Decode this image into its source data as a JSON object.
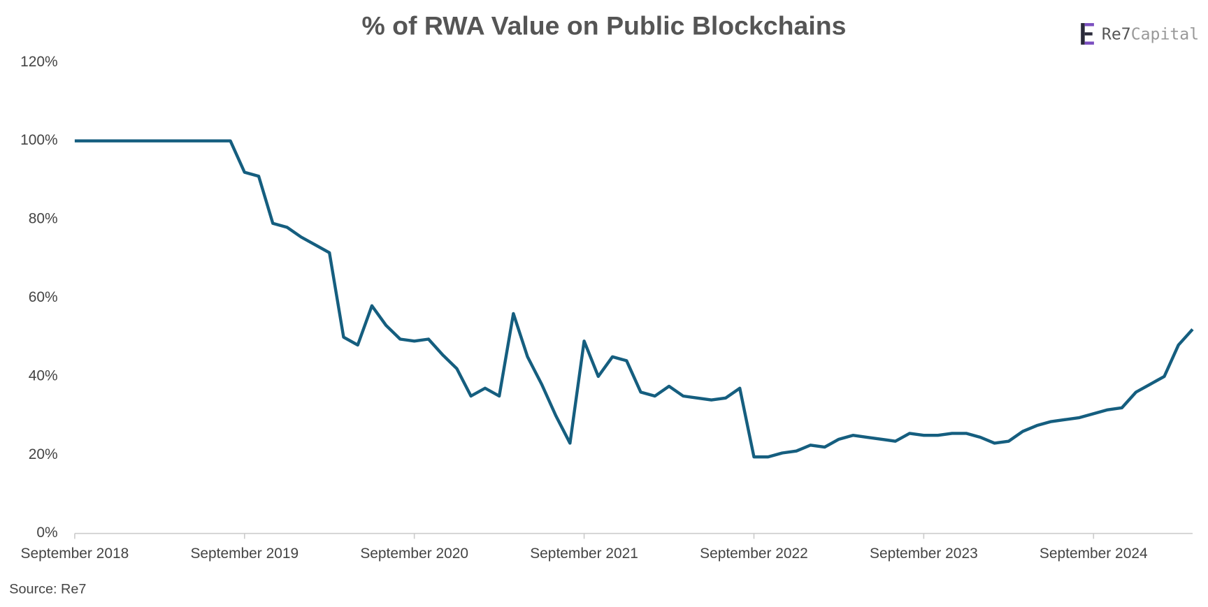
{
  "chart_data": {
    "type": "line",
    "title": "% of RWA Value on Public Blockchains",
    "source": "Source: Re7",
    "x": [
      "2018-09",
      "2018-10",
      "2018-11",
      "2018-12",
      "2019-01",
      "2019-02",
      "2019-03",
      "2019-04",
      "2019-05",
      "2019-06",
      "2019-07",
      "2019-08",
      "2019-09",
      "2019-10",
      "2019-11",
      "2019-12",
      "2020-01",
      "2020-02",
      "2020-03",
      "2020-04",
      "2020-05",
      "2020-06",
      "2020-07",
      "2020-08",
      "2020-09",
      "2020-10",
      "2020-11",
      "2020-12",
      "2021-01",
      "2021-02",
      "2021-03",
      "2021-04",
      "2021-05",
      "2021-06",
      "2021-07",
      "2021-08",
      "2021-09",
      "2021-10",
      "2021-11",
      "2021-12",
      "2022-01",
      "2022-02",
      "2022-03",
      "2022-04",
      "2022-05",
      "2022-06",
      "2022-07",
      "2022-08",
      "2022-09",
      "2022-10",
      "2022-11",
      "2022-12",
      "2023-01",
      "2023-02",
      "2023-03",
      "2023-04",
      "2023-05",
      "2023-06",
      "2023-07",
      "2023-08",
      "2023-09",
      "2023-10",
      "2023-11",
      "2023-12",
      "2024-01",
      "2024-02",
      "2024-03",
      "2024-04",
      "2024-05",
      "2024-06",
      "2024-07",
      "2024-08",
      "2024-09",
      "2024-10",
      "2024-11",
      "2024-12",
      "2025-01",
      "2025-02",
      "2025-03",
      "2025-04"
    ],
    "series": [
      {
        "name": "% of RWA Value on Public Blockchains",
        "color": "#155e7f",
        "values": [
          100,
          100,
          100,
          100,
          100,
          100,
          100,
          100,
          100,
          100,
          100,
          100,
          92,
          91,
          79,
          78,
          75.5,
          73.5,
          71.5,
          50,
          48,
          58,
          53,
          49.5,
          49,
          49.5,
          45.5,
          42,
          35,
          37,
          35,
          56,
          45,
          38,
          30,
          23,
          49,
          40,
          45,
          44,
          36,
          35,
          37.5,
          35,
          34.5,
          34,
          34.5,
          37,
          19.5,
          19.5,
          20.5,
          21,
          22.5,
          22,
          24,
          25,
          24.5,
          24,
          23.5,
          25.5,
          25,
          25,
          25.5,
          25.5,
          24.5,
          23,
          23.5,
          26,
          27.5,
          28.5,
          29,
          29.5,
          30.5,
          31.5,
          32,
          36,
          38,
          40,
          48,
          52
        ]
      }
    ],
    "xlim": [
      "2018-09",
      "2025-04"
    ],
    "xticks": [
      {
        "value": "2018-09",
        "label": "September 2018"
      },
      {
        "value": "2019-09",
        "label": "September 2019"
      },
      {
        "value": "2020-09",
        "label": "September 2020"
      },
      {
        "value": "2021-09",
        "label": "September 2021"
      },
      {
        "value": "2022-09",
        "label": "September 2022"
      },
      {
        "value": "2023-09",
        "label": "September 2023"
      },
      {
        "value": "2024-09",
        "label": "September 2024"
      }
    ],
    "ylim": [
      0,
      120
    ],
    "yticks": [
      {
        "value": 0,
        "label": "0%"
      },
      {
        "value": 20,
        "label": "20%"
      },
      {
        "value": 40,
        "label": "40%"
      },
      {
        "value": 60,
        "label": "60%"
      },
      {
        "value": 80,
        "label": "80%"
      },
      {
        "value": 100,
        "label": "100%"
      },
      {
        "value": 120,
        "label": "120%"
      }
    ],
    "grid": false
  },
  "brand": [
    "Re7",
    "Capital"
  ]
}
